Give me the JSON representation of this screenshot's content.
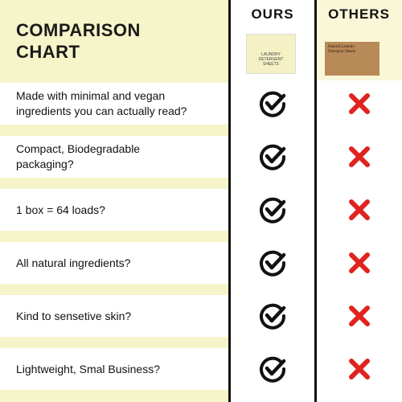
{
  "header": {
    "title_lines": [
      "COMPARISON",
      "CHART"
    ]
  },
  "columns": [
    "OURS",
    "OTHERS"
  ],
  "products": {
    "ours_label": [
      "LAUNDRY",
      "DETERGENT",
      "SHEETS"
    ],
    "others_label": [
      "Natural Laundry",
      "Detergent Sheets"
    ]
  },
  "rows": [
    {
      "lines": [
        "Made with minimal and vegan",
        "ingredients you can actually read?"
      ]
    },
    {
      "lines": [
        "Compact, Biodegradable",
        "packaging?"
      ]
    },
    {
      "lines": [
        "1 box = 64 loads?"
      ]
    },
    {
      "lines": [
        "All natural ingredients?"
      ]
    },
    {
      "lines": [
        "Kind to sensetive skin?"
      ]
    },
    {
      "lines": [
        "Lightweight, Smal Business?"
      ]
    }
  ]
}
